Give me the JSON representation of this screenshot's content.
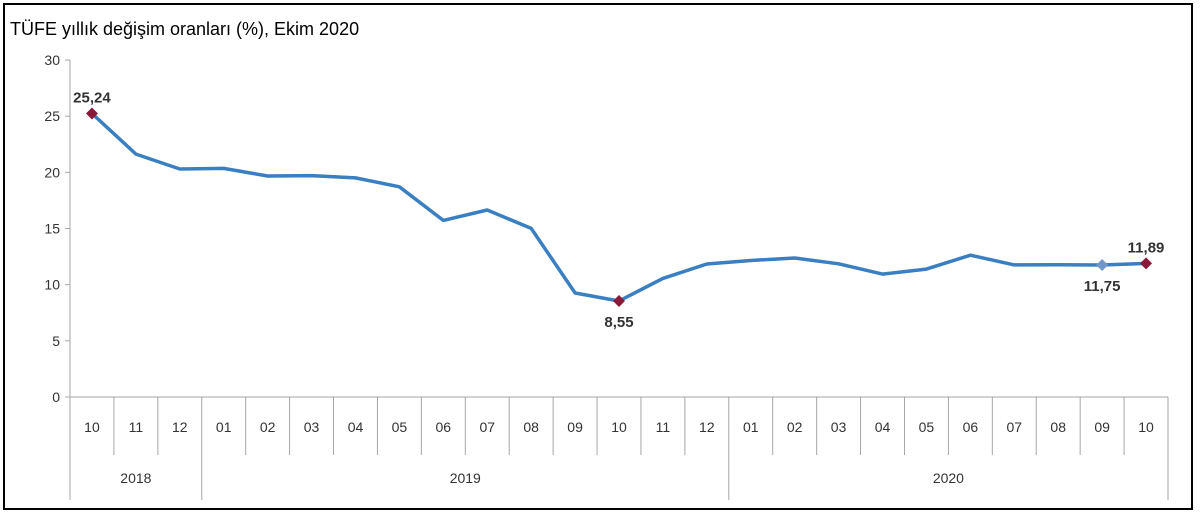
{
  "chart_data": {
    "type": "line",
    "title": "TÜFE yıllık değişim oranları (%), Ekim 2020",
    "xlabel": "",
    "ylabel": "",
    "ylim": [
      0,
      30
    ],
    "yticks": [
      "0",
      "5",
      "10",
      "15",
      "20",
      "25",
      "30"
    ],
    "months": [
      "10",
      "11",
      "12",
      "01",
      "02",
      "03",
      "04",
      "05",
      "06",
      "07",
      "08",
      "09",
      "10",
      "11",
      "12",
      "01",
      "02",
      "03",
      "04",
      "05",
      "06",
      "07",
      "08",
      "09",
      "10"
    ],
    "years": [
      {
        "label": "2018",
        "span": 3
      },
      {
        "label": "2019",
        "span": 12
      },
      {
        "label": "2020",
        "span": 10
      }
    ],
    "series": [
      {
        "values": [
          25.24,
          21.62,
          20.3,
          20.35,
          19.67,
          19.71,
          19.5,
          18.71,
          15.72,
          16.65,
          15.01,
          9.26,
          8.55,
          10.56,
          11.84,
          12.15,
          12.37,
          11.86,
          10.94,
          11.39,
          12.62,
          11.76,
          11.77,
          11.75,
          11.89
        ],
        "color": "#3a7fc1"
      }
    ],
    "highlights": [
      {
        "index": 0,
        "label": "25,24",
        "color": "#8b1a3a",
        "position": "above"
      },
      {
        "index": 12,
        "label": "8,55",
        "color": "#8b1a3a",
        "position": "below"
      },
      {
        "index": 23,
        "label": "11,75",
        "color": "#6f98c8",
        "position": "below"
      },
      {
        "index": 24,
        "label": "11,89",
        "color": "#8b1a3a",
        "position": "above"
      }
    ],
    "grid": false
  }
}
